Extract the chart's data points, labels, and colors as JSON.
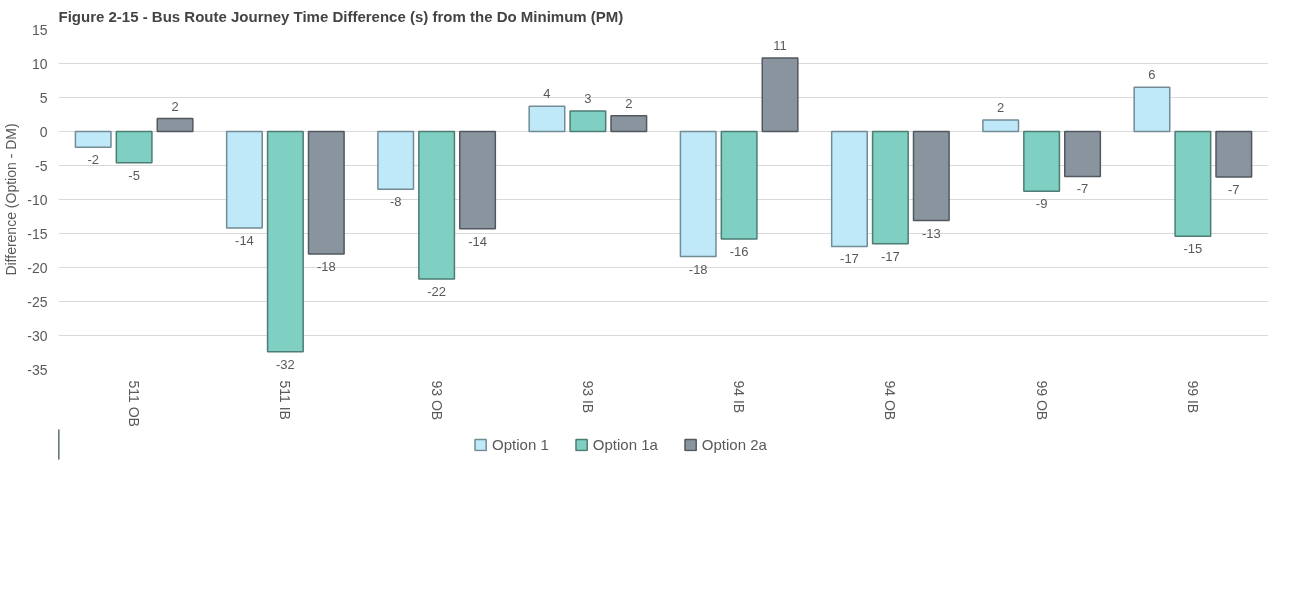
{
  "chart_data": {
    "type": "bar",
    "title": "Figure 2-15 - Bus Route Journey Time Difference (s) from the Do Minimum (PM)",
    "ylabel": "Difference (Option - DM)",
    "categories": [
      "511 OB",
      "511 IB",
      "93 OB",
      "93 IB",
      "94 IB",
      "94 OB",
      "99 OB",
      "99 IB"
    ],
    "series": [
      {
        "name": "Option 1",
        "color": "#bfe8f9",
        "values": [
          -2.3,
          -14.2,
          -8.5,
          3.7,
          -18.4,
          -16.9,
          1.7,
          6.5
        ],
        "value_labels": [
          "-2",
          "-14",
          "-8",
          "4",
          "-18",
          "-17",
          "2",
          "6"
        ]
      },
      {
        "name": "Option 1a",
        "color": "#7fcfc2",
        "values": [
          -4.6,
          -32.4,
          -21.7,
          3.0,
          -15.8,
          -16.5,
          -8.8,
          -15.4
        ],
        "value_labels": [
          "-5",
          "-32",
          "-22",
          "3",
          "-16",
          "-17",
          "-9",
          "-15"
        ]
      },
      {
        "name": "Option 2a",
        "color": "#8a949f",
        "values": [
          1.9,
          -18.0,
          -14.3,
          2.3,
          10.8,
          -13.1,
          -6.6,
          -6.7
        ],
        "value_labels": [
          "2",
          "-18",
          "-14",
          "2",
          "11",
          "-13",
          "-7",
          "-7"
        ]
      }
    ],
    "ylim": [
      -35,
      15
    ],
    "yticks": [
      -35,
      -30,
      -25,
      -20,
      -15,
      -10,
      -5,
      0,
      5,
      10,
      15
    ],
    "grid": "y",
    "legend": "bottom"
  }
}
